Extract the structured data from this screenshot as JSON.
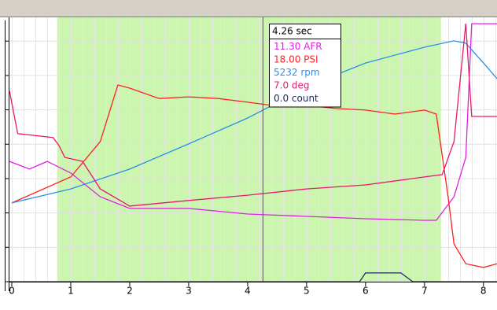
{
  "chart_data": {
    "type": "line",
    "xlim": [
      -0.04,
      8.23
    ],
    "ylim": [
      0,
      100
    ],
    "xticks": [
      0,
      1,
      2,
      3,
      4,
      5,
      6,
      7,
      8
    ],
    "yticks": [
      0,
      13,
      26,
      39,
      52,
      65,
      78,
      91
    ],
    "grid": true,
    "highlight_range": [
      0.77,
      7.28
    ],
    "highlight_color": "#ccf5b0",
    "cursor_x": 4.26,
    "series": [
      {
        "color": "#e020e0",
        "x": [
          -0.04,
          0.3,
          0.6,
          1,
          1.5,
          2,
          3,
          4,
          5,
          6,
          7,
          7.2,
          7.5,
          7.7,
          7.8,
          8.23
        ],
        "values": [
          45.5,
          42.6,
          45.5,
          41.1,
          32.1,
          27.7,
          27.7,
          25.6,
          24.7,
          23.8,
          23.2,
          23.2,
          32.1,
          47,
          97.6,
          97.6
        ]
      },
      {
        "color": "#ff2020",
        "x": [
          0,
          1,
          1.5,
          1.8,
          2,
          2.5,
          3,
          3.5,
          4,
          4.5,
          5,
          5.5,
          6,
          6.5,
          7,
          7.2,
          7.4,
          7.5,
          7.7,
          8,
          8.23
        ],
        "values": [
          29.8,
          39.6,
          53,
          74.4,
          73.2,
          69.3,
          69.9,
          69.3,
          67.9,
          66.4,
          66.7,
          65.5,
          64.9,
          63.4,
          64.9,
          63.4,
          32.1,
          14.3,
          6.8,
          5.4,
          6.8
        ]
      },
      {
        "color": "#2a8fe8",
        "x": [
          0,
          1,
          2,
          3,
          4,
          4.26,
          5,
          6,
          7,
          7.5,
          7.7,
          8,
          8.23
        ],
        "values": [
          29.8,
          35.1,
          42.6,
          52.1,
          61.9,
          64.9,
          73.8,
          82.7,
          88.7,
          91.1,
          90.2,
          82.7,
          76.8
        ]
      },
      {
        "color": "#e8186c",
        "x": [
          -0.04,
          0.1,
          0.7,
          0.8,
          0.9,
          1.2,
          1.5,
          2,
          3,
          4,
          5,
          6,
          7,
          7.3,
          7.5,
          7.7,
          7.8,
          8.23
        ],
        "values": [
          72.3,
          56,
          54.5,
          51.5,
          47,
          45.5,
          35.1,
          28.6,
          30.7,
          32.7,
          35.1,
          36.6,
          39.6,
          40.5,
          53,
          97.6,
          62.5,
          62.5
        ]
      },
      {
        "color": "#202a60",
        "x": [
          -0.04,
          5.9,
          6,
          6.6,
          6.8,
          8.23
        ],
        "values": [
          0,
          0,
          3.3,
          3.3,
          0,
          0
        ]
      }
    ],
    "tooltip": {
      "title": "4.26 sec",
      "lines": [
        "11.30 AFR",
        "18.00 PSI",
        "5232 rpm",
        "7.0 deg",
        "0.0 count"
      ]
    }
  }
}
